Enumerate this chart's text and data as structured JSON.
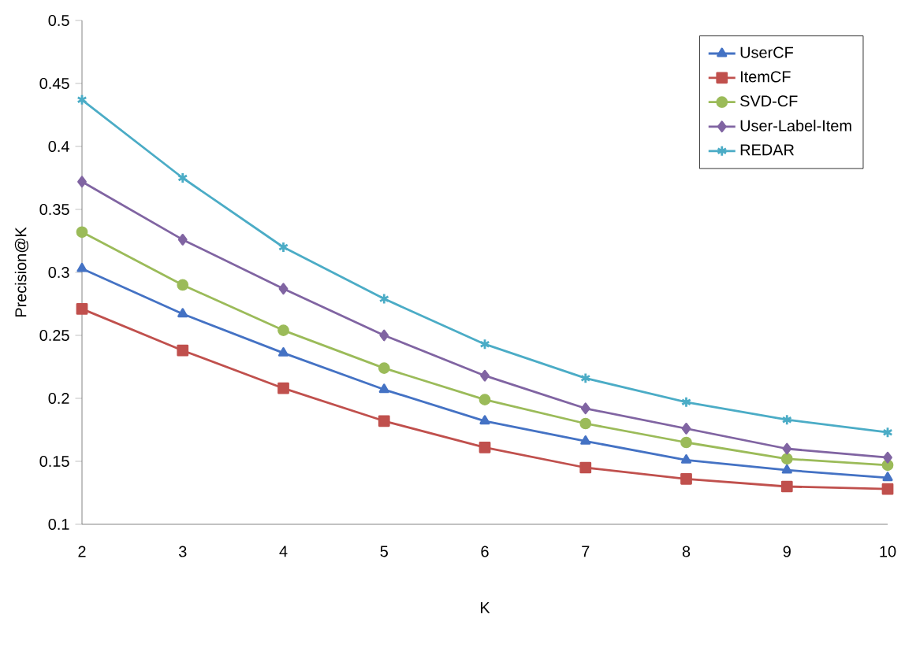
{
  "chart_data": {
    "type": "line",
    "xlabel": "K",
    "ylabel": "Precision@K",
    "x": [
      2,
      3,
      4,
      5,
      6,
      7,
      8,
      9,
      10
    ],
    "series": [
      {
        "name": "UserCF",
        "color": "#4472c4",
        "marker": "triangle",
        "values": [
          0.303,
          0.267,
          0.236,
          0.207,
          0.182,
          0.166,
          0.151,
          0.143,
          0.137
        ]
      },
      {
        "name": "ItemCF",
        "color": "#c0504d",
        "marker": "square",
        "values": [
          0.271,
          0.238,
          0.208,
          0.182,
          0.161,
          0.145,
          0.136,
          0.13,
          0.128
        ]
      },
      {
        "name": "SVD-CF",
        "color": "#9bbb59",
        "marker": "circle",
        "values": [
          0.332,
          0.29,
          0.254,
          0.224,
          0.199,
          0.18,
          0.165,
          0.152,
          0.147
        ]
      },
      {
        "name": "User-Label-Item",
        "color": "#8064a2",
        "marker": "diamond",
        "values": [
          0.372,
          0.326,
          0.287,
          0.25,
          0.218,
          0.192,
          0.176,
          0.16,
          0.153
        ]
      },
      {
        "name": "REDAR",
        "color": "#4bacc6",
        "marker": "cross",
        "values": [
          0.437,
          0.375,
          0.32,
          0.279,
          0.243,
          0.216,
          0.197,
          0.183,
          0.173
        ]
      }
    ],
    "xlim": [
      2,
      10
    ],
    "xticks": [
      2,
      3,
      4,
      5,
      6,
      7,
      8,
      9,
      10
    ],
    "ylim": [
      0.1,
      0.5
    ],
    "yticks": [
      0.1,
      0.15,
      0.2,
      0.25,
      0.3,
      0.35,
      0.4,
      0.45,
      0.5
    ],
    "grid": false,
    "legend": "top right",
    "line_style": "solid"
  }
}
